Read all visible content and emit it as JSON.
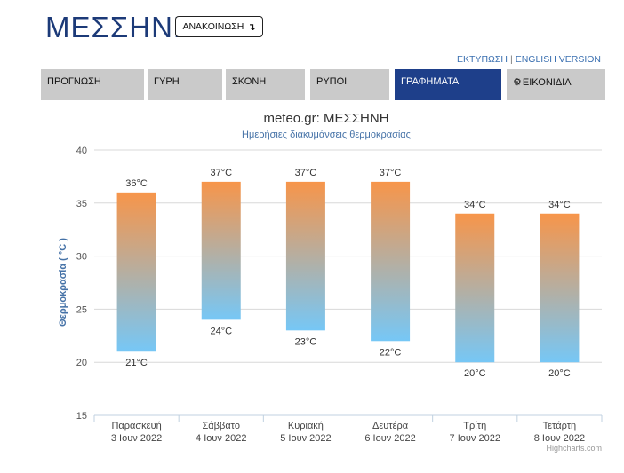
{
  "header": {
    "title": "ΜΕΣΣΗΝΗ",
    "announce_label": "ΑΝΑΚΟΙΝΩΣΗ",
    "announce_icon": "arrow-turn-icon",
    "print_link": "ΕΚΤΥΠΩΣΗ",
    "separator": "|",
    "english_link": "ENGLISH VERSION"
  },
  "tabs": [
    {
      "label": "ΠΡΟΓΝΩΣΗ",
      "active": false
    },
    {
      "label": "ΓΥΡΗ",
      "active": false
    },
    {
      "label": "ΣΚΟΝΗ",
      "active": false
    },
    {
      "label": "ΡΥΠΟΙ",
      "active": false
    },
    {
      "label": "ΓΡΑΦΗΜΑΤΑ",
      "active": true
    },
    {
      "label": "ΕΙΚΟΝΙΔΙΑ",
      "active": false,
      "icon": "gear-icon"
    }
  ],
  "colors": {
    "title": "#1c3a78",
    "active_tab": "#1e3f8a",
    "tab": "#cacaca",
    "bar_top": "#f7954a",
    "bar_bottom": "#76c7f6",
    "axis_label": "#4572a7"
  },
  "chart_data": {
    "type": "bar",
    "subtype": "columnrange",
    "title": "meteo.gr: ΜΕΣΣΗΝΗ",
    "subtitle": "Ημερήσιες διακυμάνσεις θερμοκρασίας",
    "ylabel": "Θερμοκρασία ( °C )",
    "xlabel": "",
    "ylim": [
      15,
      40
    ],
    "yticks": [
      15,
      20,
      25,
      30,
      35,
      40
    ],
    "grid": true,
    "categories": [
      {
        "day": "Παρασκευή",
        "date": "3 Ιουν 2022"
      },
      {
        "day": "Σάββατο",
        "date": "4 Ιουν 2022"
      },
      {
        "day": "Κυριακή",
        "date": "5 Ιουν 2022"
      },
      {
        "day": "Δευτέρα",
        "date": "6 Ιουν 2022"
      },
      {
        "day": "Τρίτη",
        "date": "7 Ιουν 2022"
      },
      {
        "day": "Τετάρτη",
        "date": "8 Ιουν 2022"
      }
    ],
    "series": [
      {
        "low": [
          21,
          24,
          23,
          22,
          20,
          20
        ],
        "high": [
          36,
          37,
          37,
          37,
          34,
          34
        ]
      }
    ],
    "unit_suffix": "°C",
    "credits": "Highcharts.com"
  }
}
